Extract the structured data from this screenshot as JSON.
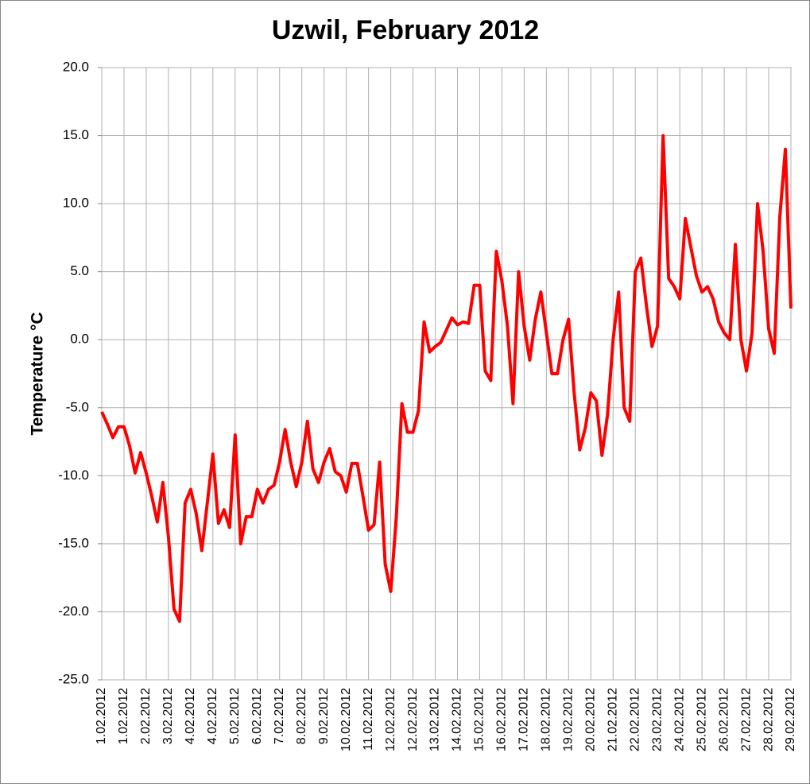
{
  "chart_data": {
    "type": "line",
    "title": "Uzwil, February 2012",
    "y_label": "Temperature °C",
    "categories": [
      "1.02.2012",
      null,
      null,
      null,
      "1.02.2012",
      null,
      null,
      null,
      "2.02.2012",
      null,
      null,
      null,
      "3.02.2012",
      null,
      null,
      null,
      "4.02.2012",
      null,
      null,
      null,
      "4.02.2012",
      null,
      null,
      null,
      "5.02.2012",
      null,
      null,
      null,
      "6.02.2012",
      null,
      null,
      null,
      "7.02.2012",
      null,
      null,
      null,
      "8.02.2012",
      null,
      null,
      null,
      "9.02.2012",
      null,
      null,
      null,
      "10.02.2012",
      null,
      null,
      null,
      "11.02.2012",
      null,
      null,
      null,
      "12.02.2012",
      null,
      null,
      null,
      "12.02.2012",
      null,
      null,
      null,
      "13.02.2012",
      null,
      null,
      null,
      "14.02.2012",
      null,
      null,
      null,
      "15.02.2012",
      null,
      null,
      null,
      "16.02.2012",
      null,
      null,
      null,
      "17.02.2012",
      null,
      null,
      null,
      "18.02.2012",
      null,
      null,
      null,
      "19.02.2012",
      null,
      null,
      null,
      "20.02.2012",
      null,
      null,
      null,
      "21.02.2012",
      null,
      null,
      null,
      "22.02.2012",
      null,
      null,
      null,
      "23.02.2012",
      null,
      null,
      null,
      "24.02.2012",
      null,
      null,
      null,
      "25.02.2012",
      null,
      null,
      null,
      "26.02.2012",
      null,
      null,
      null,
      "27.02.2012",
      null,
      null,
      null,
      "28.02.2012",
      null,
      null,
      null,
      "29.02.2012"
    ],
    "series": [
      {
        "color": "#ff0000",
        "values": [
          -5.3,
          -6.2,
          -7.2,
          -6.4,
          -6.4,
          -7.8,
          -9.8,
          -8.3,
          -9.8,
          -11.5,
          -13.4,
          -10.5,
          -14.5,
          -19.8,
          -20.7,
          -12,
          -11,
          -12.8,
          -15.5,
          -12,
          -8.4,
          -13.5,
          -12.5,
          -13.8,
          -7,
          -15,
          -13,
          -13,
          -11,
          -12,
          -11,
          -10.7,
          -9,
          -6.6,
          -9,
          -10.8,
          -9,
          -6,
          -9.5,
          -10.5,
          -9,
          -8,
          -9.7,
          -10,
          -11.2,
          -9.1,
          -9.1,
          -11.5,
          -14,
          -13.6,
          -9,
          -16.5,
          -18.5,
          -13,
          -4.7,
          -6.8,
          -6.8,
          -5.2,
          1.3,
          -0.9,
          -0.5,
          -0.2,
          0.7,
          1.6,
          1.1,
          1.3,
          1.2,
          4,
          4,
          -2.3,
          -3,
          6.5,
          4.3,
          1,
          -4.7,
          5,
          1,
          -1.5,
          1.5,
          3.5,
          0.5,
          -2.5,
          -2.5,
          0,
          1.5,
          -3.9,
          -8.1,
          -6.5,
          -3.9,
          -4.5,
          -8.5,
          -5.5,
          0,
          3.5,
          -5,
          -6,
          5,
          6,
          2.5,
          -0.5,
          1,
          15,
          4.5,
          3.9,
          3,
          8.9,
          6.8,
          4.7,
          3.5,
          3.9,
          3,
          1.3,
          0.5,
          0,
          7,
          0,
          -2.3,
          0.5,
          10,
          6.5,
          0.8,
          -1,
          9,
          14,
          2.3
        ]
      }
    ],
    "ylim": [
      -25,
      20
    ],
    "yticks": [
      {
        "value": -25,
        "label": "-25.0"
      },
      {
        "value": -20,
        "label": "-20.0"
      },
      {
        "value": -15,
        "label": "-15.0"
      },
      {
        "value": -10,
        "label": "-10.0"
      },
      {
        "value": -5,
        "label": "-5.0"
      },
      {
        "value": 0,
        "label": "0.0"
      },
      {
        "value": 5,
        "label": "5.0"
      },
      {
        "value": 10,
        "label": "10.0"
      },
      {
        "value": 15,
        "label": "15.0"
      },
      {
        "value": 20,
        "label": "20.0"
      }
    ],
    "grid": true
  }
}
